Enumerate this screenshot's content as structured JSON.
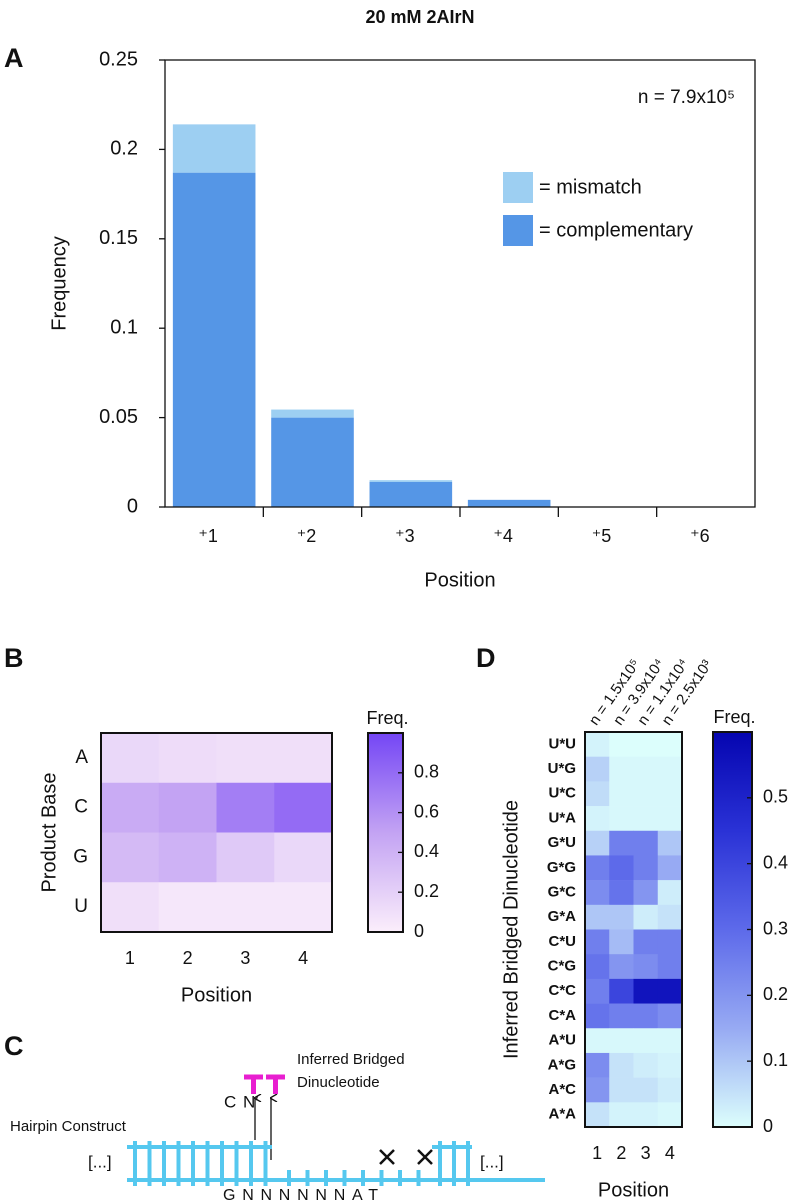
{
  "chart_data": [
    {
      "type": "bar",
      "panel_label": "A",
      "title": "20 mM 2AIrN",
      "xlabel": "Position",
      "ylabel": "Frequency",
      "categories": [
        "⁺1",
        "⁺2",
        "⁺3",
        "⁺4",
        "⁺5",
        "⁺6"
      ],
      "series": [
        {
          "name": "= complementary",
          "color": "#5596e6",
          "values": [
            0.187,
            0.05,
            0.014,
            0.004,
            0,
            0
          ]
        },
        {
          "name": "= mismatch",
          "color": "#9dcff2",
          "values": [
            0.027,
            0.0045,
            0.001,
            0,
            0,
            0
          ]
        }
      ],
      "stacked": true,
      "ylim": [
        0,
        0.25
      ],
      "yticks": [
        0,
        0.05,
        0.1,
        0.15,
        0.2,
        0.25
      ],
      "annotations": [
        "n = 7.9x10⁵"
      ],
      "legend": "upper right"
    },
    {
      "type": "heatmap",
      "panel_label": "B",
      "xlabel": "Position",
      "ylabel": "Product Base",
      "categories": [
        "1",
        "2",
        "3",
        "4"
      ],
      "rows": [
        "A",
        "C",
        "G",
        "U"
      ],
      "values": [
        [
          0.15,
          0.12,
          0.1,
          0.1
        ],
        [
          0.45,
          0.5,
          0.7,
          0.8
        ],
        [
          0.35,
          0.4,
          0.25,
          0.15
        ],
        [
          0.1,
          0.05,
          0.05,
          0.05
        ]
      ],
      "colorbar_label": "Freq.",
      "zlim": [
        0,
        1
      ],
      "zticks": [
        0,
        0.2,
        0.4,
        0.6,
        0.8
      ],
      "colormap": [
        "#fbeefb",
        "#c3a3f3",
        "#7446f5"
      ]
    },
    {
      "type": "heatmap",
      "panel_label": "D",
      "xlabel": "Position",
      "ylabel": "Inferred Bridged Dinucleotide",
      "categories": [
        "1",
        "2",
        "3",
        "4"
      ],
      "column_labels": [
        "n = 1.5x10⁵",
        "n = 3.9x10⁴",
        "n = 1.1x10⁴",
        "n = 2.5x10³"
      ],
      "rows": [
        "U*U",
        "U*G",
        "U*C",
        "U*A",
        "G*U",
        "G*G",
        "G*C",
        "G*A",
        "C*U",
        "C*G",
        "C*C",
        "C*A",
        "A*U",
        "A*G",
        "A*C",
        "A*A"
      ],
      "values": [
        [
          0.02,
          0,
          0,
          0
        ],
        [
          0.08,
          0.01,
          0.01,
          0.01
        ],
        [
          0.06,
          0.01,
          0.01,
          0.01
        ],
        [
          0.02,
          0.01,
          0.01,
          0.01
        ],
        [
          0.08,
          0.25,
          0.25,
          0.1
        ],
        [
          0.25,
          0.3,
          0.25,
          0.15
        ],
        [
          0.22,
          0.28,
          0.2,
          0.03
        ],
        [
          0.1,
          0.1,
          0.03,
          0.05
        ],
        [
          0.25,
          0.12,
          0.25,
          0.25
        ],
        [
          0.28,
          0.2,
          0.22,
          0.25
        ],
        [
          0.25,
          0.4,
          0.55,
          0.55
        ],
        [
          0.28,
          0.25,
          0.25,
          0.22
        ],
        [
          0.01,
          0.01,
          0.01,
          0.01
        ],
        [
          0.22,
          0.05,
          0.03,
          0.02
        ],
        [
          0.2,
          0.05,
          0.05,
          0.03
        ],
        [
          0.05,
          0.02,
          0.02,
          0.01
        ]
      ],
      "colorbar_label": "Freq.",
      "zlim": [
        0,
        0.6
      ],
      "zticks": [
        0,
        0.1,
        0.2,
        0.3,
        0.4,
        0.5
      ],
      "colormap": [
        "#dcfefc",
        "#97aaf3",
        "#5d6aea",
        "#2a32d6",
        "#0505b0"
      ]
    }
  ],
  "diagram": {
    "panel_label": "C",
    "labels": {
      "inferred_1": "Inferred Bridged",
      "inferred_2": "Dinucleotide",
      "hairpin": "Hairpin Construct",
      "c": "C",
      "n": "N′",
      "left_ellipsis": "[...]",
      "right_ellipsis": "[...]",
      "sequence": "GNNNNNNAT"
    }
  }
}
